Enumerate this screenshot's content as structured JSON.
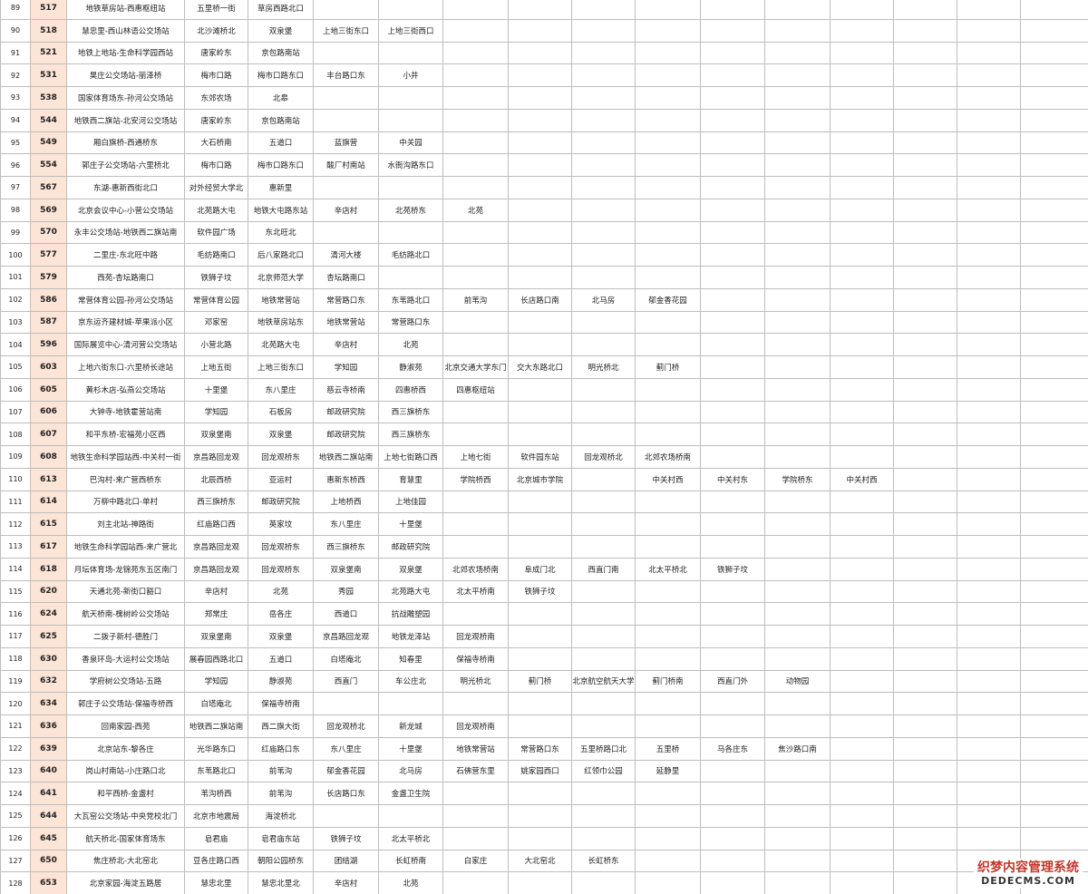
{
  "table": {
    "rows": [
      {
        "no": 89,
        "route": 517,
        "name": "地铁草房站-西惠枢纽站",
        "stops": [
          "五里桥一街",
          "草房西路北口"
        ]
      },
      {
        "no": 90,
        "route": 518,
        "name": "慧忠里-西山林语公交场站",
        "stops": [
          "北沙滩桥北",
          "双泉堡",
          "上地三街东口",
          "上地三街西口"
        ]
      },
      {
        "no": 91,
        "route": 521,
        "name": "地铁上地站-生命科学园西站",
        "stops": [
          "唐家岭东",
          "京包路南站"
        ]
      },
      {
        "no": 92,
        "route": 531,
        "name": "昊庄公交场站-丽泽桥",
        "stops": [
          "梅市口路",
          "梅市口路东口",
          "丰台路口东",
          "小井"
        ]
      },
      {
        "no": 93,
        "route": 538,
        "name": "国家体育场东-孙河公交场站",
        "stops": [
          "东郊农场",
          "北皋"
        ]
      },
      {
        "no": 94,
        "route": 544,
        "name": "地铁西二旗站-北安河公交场站",
        "stops": [
          "唐家岭东",
          "京包路南站"
        ]
      },
      {
        "no": 95,
        "route": 549,
        "name": "厢白旗桥-西通桥东",
        "stops": [
          "大石桥南",
          "五道口",
          "蓝旗营",
          "中关园"
        ]
      },
      {
        "no": 96,
        "route": 554,
        "name": "郭庄子公交场站-六里桥北",
        "stops": [
          "梅市口路",
          "梅市口路东口",
          "酸厂村南站",
          "水衙沟路东口"
        ]
      },
      {
        "no": 97,
        "route": 567,
        "name": "东湖-惠新西街北口",
        "stops": [
          "对外经贸大学北",
          "惠新里"
        ]
      },
      {
        "no": 98,
        "route": 569,
        "name": "北京会议中心-小营公交场站",
        "stops": [
          "北苑路大屯",
          "地铁大屯路东站",
          "辛店村",
          "北苑桥东",
          "北苑"
        ]
      },
      {
        "no": 99,
        "route": 570,
        "name": "永丰公交场站-地铁西二旗站南",
        "stops": [
          "软件园广场",
          "东北旺北"
        ]
      },
      {
        "no": 100,
        "route": 577,
        "name": "二里庄-东北旺中路",
        "stops": [
          "毛纺路南口",
          "后八家路北口",
          "清河大楼",
          "毛纺路北口"
        ]
      },
      {
        "no": 101,
        "route": 579,
        "name": "西苑-杏坛路南口",
        "stops": [
          "铁狮子坟",
          "北京师范大学",
          "杏坛路南口"
        ]
      },
      {
        "no": 102,
        "route": 586,
        "name": "常营体育公园-孙河公交场站",
        "stops": [
          "常营体育公园",
          "地铁常营站",
          "常营路口东",
          "东苇路北口",
          "前苇沟",
          "长店路口南",
          "北马房",
          "郁金香花园"
        ]
      },
      {
        "no": 103,
        "route": 587,
        "name": "京东运齐建材城-苹果派小区",
        "stops": [
          "邓家窑",
          "地铁草房站东",
          "地铁常营站",
          "常营路口东"
        ]
      },
      {
        "no": 104,
        "route": 596,
        "name": "国际展览中心-清河营公交场站",
        "stops": [
          "小营北路",
          "北苑路大屯",
          "辛店村",
          "北苑"
        ]
      },
      {
        "no": 105,
        "route": 603,
        "name": "上地六街东口-六里桥长途站",
        "stops": [
          "上地五街",
          "上地三街东口",
          "学知园",
          "静淑苑",
          "北京交通大学东门",
          "交大东路北口",
          "明光桥北",
          "蓟门桥"
        ]
      },
      {
        "no": 106,
        "route": 605,
        "name": "黄杉木店-弘燕公交场站",
        "stops": [
          "十里堡",
          "东八里庄",
          "慈云寺桥南",
          "四惠桥西",
          "四惠枢纽站"
        ]
      },
      {
        "no": 107,
        "route": 606,
        "name": "大钟寺-地铁霍营站南",
        "stops": [
          "学知园",
          "石板房",
          "邮政研究院",
          "西三旗桥东"
        ]
      },
      {
        "no": 108,
        "route": 607,
        "name": "和平东桥-宏福苑小区西",
        "stops": [
          "双泉堡南",
          "双泉堡",
          "邮政研究院",
          "西三旗桥东"
        ]
      },
      {
        "no": 109,
        "route": 608,
        "name": "地铁生命科学园站西-中关村一街",
        "stops": [
          "京昌路回龙观",
          "回龙观桥东",
          "地铁西二旗站南",
          "上地七街路口西",
          "上地七街",
          "软件园东站",
          "回龙观桥北",
          "北郊农场桥南"
        ]
      },
      {
        "no": 110,
        "route": 613,
        "name": "巴沟村-来广营西桥东",
        "stops": [
          "北辰西桥",
          "亚运村",
          "惠新东桥西",
          "育慧里",
          "学院桥西",
          "北京城市学院",
          null,
          "中关村西",
          "中关村东",
          "学院桥东",
          "中关村西"
        ]
      },
      {
        "no": 111,
        "route": 614,
        "name": "万柳中路北口-单村",
        "stops": [
          "西三旗桥东",
          "邮政研究院",
          "上地桥西",
          "上地佳园"
        ]
      },
      {
        "no": 112,
        "route": 615,
        "name": "刘主北站-神路街",
        "stops": [
          "红庙路口西",
          "英家坟",
          "东八里庄",
          "十里堡"
        ]
      },
      {
        "no": 113,
        "route": 617,
        "name": "地铁生命科学园站西-来广营北",
        "stops": [
          "京昌路回龙观",
          "回龙观桥东",
          "西三旗桥东",
          "邮政研究院"
        ]
      },
      {
        "no": 114,
        "route": 618,
        "name": "月坛体育场-龙锦苑东五区南门",
        "stops": [
          "京昌路回龙观",
          "回龙观桥东",
          "双泉堡南",
          "双泉堡",
          "北郊农场桥南",
          "阜成门北",
          "西直门南",
          "北太平桥北",
          "铁狮子坟"
        ]
      },
      {
        "no": 115,
        "route": 620,
        "name": "天通北苑-新街口豁口",
        "stops": [
          "辛店村",
          "北苑",
          "秀园",
          "北苑路大屯",
          "北太平桥南",
          "铁狮子坟"
        ]
      },
      {
        "no": 116,
        "route": 624,
        "name": "航天桥南-槐树岭公交场站",
        "stops": [
          "郑常庄",
          "岳各庄",
          "西道口",
          "抗战雕塑园"
        ]
      },
      {
        "no": 117,
        "route": 625,
        "name": "二拨子新村-德胜门",
        "stops": [
          "双泉堡南",
          "双泉堡",
          "京昌路回龙观",
          "地铁龙泽站",
          "回龙观桥南"
        ]
      },
      {
        "no": 118,
        "route": 630,
        "name": "香泉环岛-大运村公交场站",
        "stops": [
          "展春园西路北口",
          "五道口",
          "白塔庵北",
          "知春里",
          "保福寺桥南"
        ]
      },
      {
        "no": 119,
        "route": 632,
        "name": "学府树公交场站-五路",
        "stops": [
          "学知园",
          "静淑苑",
          "西直门",
          "车公庄北",
          "明光桥北",
          "蓟门桥",
          "北京航空航天大学",
          "蓟门桥南",
          "西直门外",
          "动物园"
        ]
      },
      {
        "no": 120,
        "route": 634,
        "name": "郭庄子公交场站-保福寺桥西",
        "stops": [
          "白塔庵北",
          "保福寺桥南"
        ]
      },
      {
        "no": 121,
        "route": 636,
        "name": "回南家园-西苑",
        "stops": [
          "地铁西二旗站南",
          "西二旗大街",
          "回龙观桥北",
          "新龙城",
          "回龙观桥南"
        ]
      },
      {
        "no": 122,
        "route": 639,
        "name": "北京站东-黎各庄",
        "stops": [
          "光华路东口",
          "红庙路口东",
          "东八里庄",
          "十里堡",
          "地铁常营站",
          "常营路口东",
          "五里桥路口北",
          "五里桥",
          "马各庄东",
          "焦沙路口南"
        ]
      },
      {
        "no": 123,
        "route": 640,
        "name": "岗山村南站-小庄路口北",
        "stops": [
          "东苇路北口",
          "前苇沟",
          "郁金香花园",
          "北马房",
          "石佛营东里",
          "姚家园西口",
          "红领巾公园",
          "延静里"
        ]
      },
      {
        "no": 124,
        "route": 641,
        "name": "和平西桥-金盏村",
        "stops": [
          "苇沟桥西",
          "前苇沟",
          "长店路口东",
          "金盏卫生院"
        ]
      },
      {
        "no": 125,
        "route": 644,
        "name": "大瓦窑公交场站-中央党校北门",
        "stops": [
          "北京市地震局",
          "海淀桥北"
        ]
      },
      {
        "no": 126,
        "route": 645,
        "name": "航天桥北-国家体育场东",
        "stops": [
          "皂君庙",
          "皂君庙东站",
          "铁狮子坟",
          "北太平桥北"
        ]
      },
      {
        "no": 127,
        "route": 650,
        "name": "焦庄桥北-大北窑北",
        "stops": [
          "豆各庄路口西",
          "朝阳公园桥东",
          "团结湖",
          "长虹桥南",
          "白家庄",
          "大北窑北",
          "长虹桥东"
        ]
      },
      {
        "no": 128,
        "route": 653,
        "name": "北京家园-海淀五路居",
        "stops": [
          "慧忠北里",
          "慧忠北里北",
          "辛店村",
          "北苑"
        ]
      }
    ]
  },
  "watermark": {
    "line1": "织梦内容管理系统",
    "line2": "DEDECMS.COM"
  }
}
